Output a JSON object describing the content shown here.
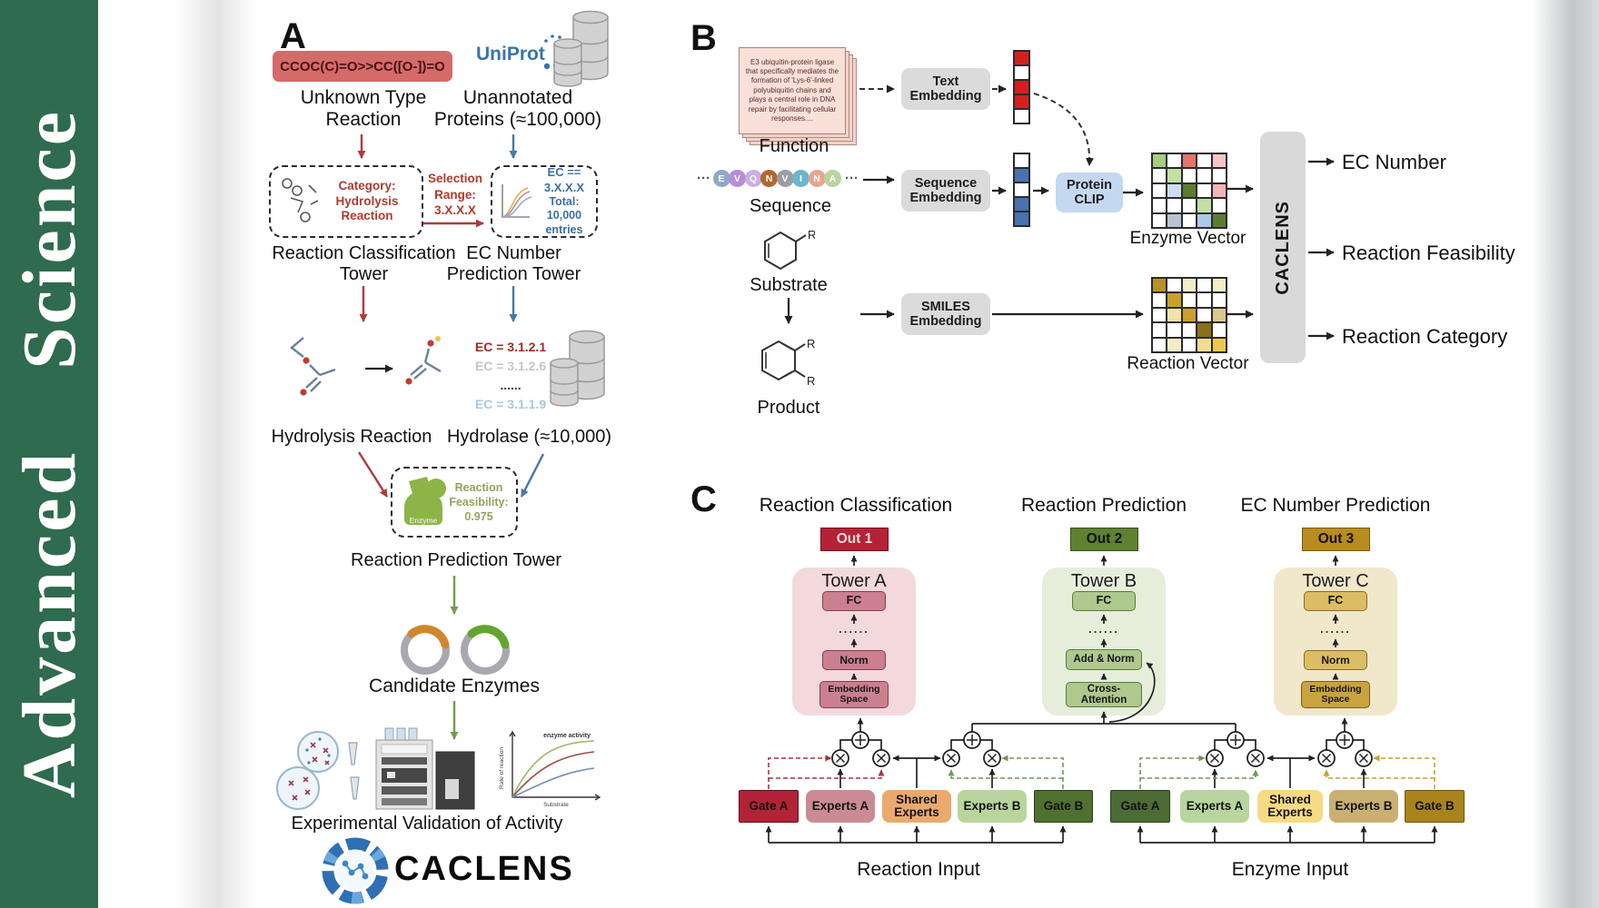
{
  "sidebar": {
    "journal": "Advanced Science",
    "brand_color": "#2f6b4e"
  },
  "panelA": {
    "label": "A",
    "smiles_reaction": "CCOC(C)=O>>CC([O-])=O",
    "unknown_type": "Unknown Type Reaction",
    "uniprot_logo": "UniProt",
    "unannotated_proteins": "Unannotated Proteins (≈100,000)",
    "category_box": "Category: Hydrolysis Reaction",
    "selection_range": "Selection Range: 3.X.X.X",
    "ec_filter": "EC == 3.X.X.X",
    "ec_total": "Total: 10,000 entries",
    "reaction_classification_tower": "Reaction Classification Tower",
    "ec_number_prediction_tower": "EC Number Prediction Tower",
    "ec_list": [
      {
        "text": "EC = 3.1.2.1",
        "color": "#9e2b20"
      },
      {
        "text": "EC = 3.1.2.6",
        "color": "#c6c6c6"
      },
      {
        "text": "......",
        "color": "#3a3a3a"
      },
      {
        "text": "EC = 3.1.1.9",
        "color": "#a9c7e4"
      }
    ],
    "hydrolysis_reaction": "Hydrolysis Reaction",
    "hydrolase": "Hydrolase (≈10,000)",
    "enzyme_icon_label": "Enzyme",
    "reaction_feasibility": "Reaction Feasibility: 0.975",
    "reaction_prediction_tower": "Reaction Prediction Tower",
    "candidate_enzymes": "Candidate Enzymes",
    "activity_plot": {
      "ylabel": "Rate of reaction",
      "xlabel": "Substrate",
      "annotation": "enzyme activity"
    },
    "experimental_validation": "Experimental Validation of Activity",
    "caclens_wordmark": "CACLENS"
  },
  "panelB": {
    "label": "B",
    "function_card_text": "E3 ubiquitin-protein ligase that specifically mediates the formation of 'Lys-6'-linked polyubiquitin chains and plays a central role in DNA repair by facilitating cellular responses....",
    "function_label": "Function",
    "ellipsis": "···",
    "residues": [
      {
        "letter": "E",
        "color": "#8fa8c8"
      },
      {
        "letter": "V",
        "color": "#b48ed8"
      },
      {
        "letter": "Q",
        "color": "#c9afe3"
      },
      {
        "letter": "N",
        "color": "#b2682f"
      },
      {
        "letter": "V",
        "color": "#9c9ca4"
      },
      {
        "letter": "I",
        "color": "#6db6cb"
      },
      {
        "letter": "N",
        "color": "#e8a58f"
      },
      {
        "letter": "A",
        "color": "#bad3a2"
      }
    ],
    "sequence_label": "Sequence",
    "substrate_label": "Substrate",
    "product_label": "Product",
    "r_label": "R",
    "text_embedding": "Text Embedding",
    "sequence_embedding": "Sequence Embedding",
    "smiles_embedding": "SMILES Embedding",
    "protein_clip": "Protein CLIP",
    "text_vector": [
      "#d42020",
      "#ffffff",
      "#d42020",
      "#d42020",
      "#ffffff"
    ],
    "sequence_vector": [
      "#ffffff",
      "#4a72b0",
      "#ffffff",
      "#4a72b0",
      "#4a72b0"
    ],
    "enzyme_vector_label": "Enzyme Vector",
    "reaction_vector_label": "Reaction Vector",
    "enzyme_vector_cells": [
      [
        "#a8cc80",
        "#ffffff",
        "#e4756b",
        "#ffffff",
        "#f5c6c6"
      ],
      [
        "#ffffff",
        "#c3dfa4",
        "#ffffff",
        "#ffffff",
        "#ffffff"
      ],
      [
        "#ffffff",
        "#cfdcf0",
        "#5c7d30",
        "#ffffff",
        "#f0b6b6"
      ],
      [
        "#ffffff",
        "#ffffff",
        "#ffffff",
        "#c3dfa4",
        "#ffffff"
      ],
      [
        "#ffffff",
        "#b9c3d3",
        "#ffffff",
        "#abc9e8",
        "#5c7d30"
      ]
    ],
    "reaction_vector_cells": [
      [
        "#b8912a",
        "#ffffff",
        "#f5ecc8",
        "#ffffff",
        "#f5ecc8"
      ],
      [
        "#ffffff",
        "#c9a02b",
        "#ffffff",
        "#ffffff",
        "#ffffff"
      ],
      [
        "#ffffff",
        "#f2e2ab",
        "#c9a02b",
        "#ffffff",
        "#dcc88e"
      ],
      [
        "#ffffff",
        "#ffffff",
        "#ffffff",
        "#8a7119",
        "#ffffff"
      ],
      [
        "#ffffff",
        "#f5ecc8",
        "#ffffff",
        "#f1dd92",
        "#ecc94e"
      ]
    ],
    "caclens_bar": "CACLENS",
    "outputs": [
      "EC Number",
      "Reaction Feasibility",
      "Reaction Category"
    ]
  },
  "panelC": {
    "label": "C",
    "headers": [
      "Reaction Classification",
      "Reaction Prediction",
      "EC Number Prediction"
    ],
    "outs": [
      "Out 1",
      "Out 2",
      "Out 3"
    ],
    "towers": [
      {
        "title": "Tower A",
        "fc": "FC",
        "dots": "......",
        "mid": "Norm",
        "bottom": "Embedding Space"
      },
      {
        "title": "Tower B",
        "fc": "FC",
        "dots": "......",
        "mid": "Add & Norm",
        "bottom": "Cross-Attention"
      },
      {
        "title": "Tower C",
        "fc": "FC",
        "dots": "......",
        "mid": "Norm",
        "bottom": "Embedding Space"
      }
    ],
    "moe_left": {
      "gate_a": "Gate A",
      "experts_a": "Experts A",
      "shared": "Shared Experts",
      "experts_b": "Experts B",
      "gate_b": "Gate B",
      "input": "Reaction Input"
    },
    "moe_right": {
      "gate_a": "Gate A",
      "experts_a": "Experts A",
      "shared": "Shared Experts",
      "experts_b": "Experts B",
      "gate_b": "Gate B",
      "input": "Enzyme Input"
    }
  }
}
